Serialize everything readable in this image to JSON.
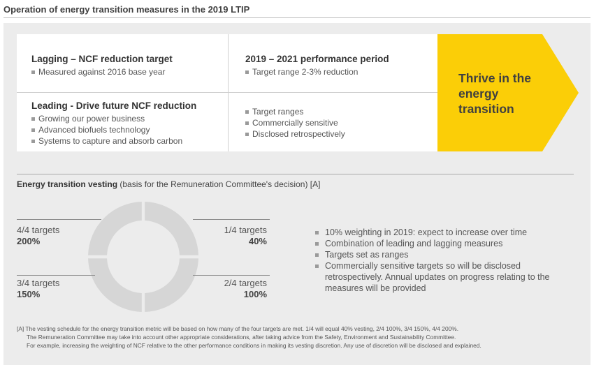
{
  "page_title": "Operation of energy transition measures in the 2019 LTIP",
  "measures": {
    "lagging": {
      "heading": "Lagging – NCF reduction target",
      "items": [
        "Measured against 2016 base year"
      ]
    },
    "performance": {
      "heading": "2019 – 2021 performance period",
      "items": [
        "Target range 2-3% reduction"
      ]
    },
    "leading": {
      "heading": "Leading - Drive future NCF reduction",
      "items": [
        "Growing our power business",
        "Advanced biofuels technology",
        "Systems to capture and absorb carbon"
      ]
    },
    "target_notes": {
      "items": [
        "Target ranges",
        "Commercially sensitive",
        "Disclosed retrospectively"
      ]
    },
    "arrow": {
      "text": "Thrive in the energy transition",
      "color": "#FBCE07"
    }
  },
  "vesting": {
    "title_bold": "Energy transition vesting",
    "title_rest": " (basis for the Remuneration Committee's decision) [A]",
    "segments": [
      {
        "label": "4/4 targets",
        "value": "200%"
      },
      {
        "label": "1/4 targets",
        "value": "40%"
      },
      {
        "label": "3/4 targets",
        "value": "150%"
      },
      {
        "label": "2/4 targets",
        "value": "100%"
      }
    ],
    "donut_color": "#d6d6d6",
    "bullets": [
      "10% weighting in 2019: expect to increase over time",
      "Combination of leading and lagging measures",
      "Targets set as ranges",
      "Commercially sensitive targets so will be disclosed retrospectively.  Annual updates on progress relating to the measures will be provided"
    ]
  },
  "footnote": {
    "line1": "[A] The vesting schedule for the energy transition metric will be based on how many of the four targets are met. 1/4 will equal 40% vesting, 2/4 100%, 3/4 150%, 4/4 200%.",
    "line2": "The Remuneration Committee may take into account other appropriate considerations, after taking advice from the Safety, Environment and Sustainability Committee.",
    "line3": "For example, increasing the weighting of NCF relative to the other performance conditions in making its vesting discretion. Any use of discretion will be disclosed and explained."
  }
}
